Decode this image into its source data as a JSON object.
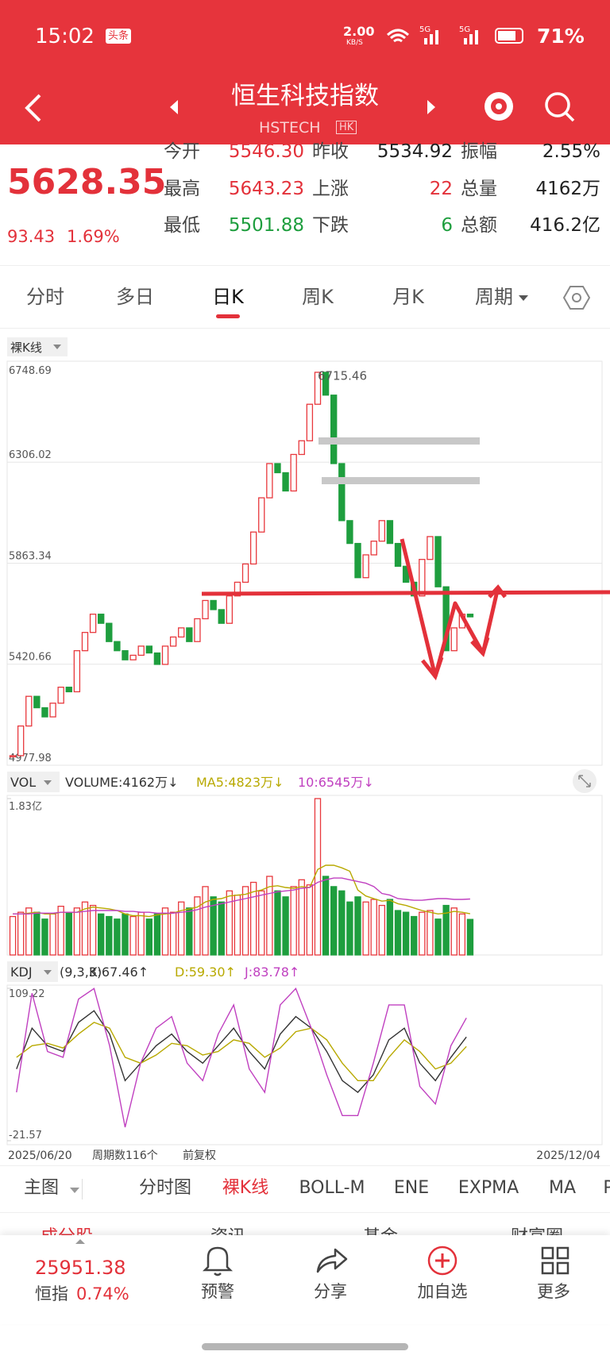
{
  "status": {
    "time": "15:02",
    "app": "头条",
    "speed": "2.00",
    "speed_unit": "KB/S",
    "battery": "71%"
  },
  "header": {
    "title": "恒生科技指数",
    "code": "HSTECH",
    "market": "HK"
  },
  "quote": {
    "price": "5628.35",
    "change": "93.43",
    "change_pct": "1.69%",
    "rows": [
      [
        {
          "label": "今开",
          "value": "5546.30"
        },
        {
          "label": "昨收",
          "value": "5534.92"
        },
        {
          "label": "振幅",
          "value": "2.55%"
        }
      ],
      [
        {
          "label": "最高",
          "value": "5643.23"
        },
        {
          "label": "上涨",
          "value": "22"
        },
        {
          "label": "总量",
          "value": "4162万"
        }
      ],
      [
        {
          "label": "最低",
          "value": "5501.88"
        },
        {
          "label": "下跌",
          "value": "6"
        },
        {
          "label": "总额",
          "value": "416.2亿"
        }
      ]
    ]
  },
  "tabs": [
    "分时",
    "多日",
    "日K",
    "周K",
    "月K",
    "周期"
  ],
  "chart_data": [
    {
      "type": "candlestick",
      "title": "裸K线",
      "up_color": "#e8383d",
      "down_color": "#1e9e3e",
      "max_label": 6715.46,
      "ylim": [
        4977.98,
        6748.69
      ],
      "yticks": [
        6748.69,
        6306.02,
        5863.34,
        5420.66,
        4977.98
      ],
      "grid": true,
      "values": [
        5020,
        5150,
        5280,
        5230,
        5190,
        5250,
        5320,
        5300,
        5480,
        5560,
        5640,
        5600,
        5520,
        5480,
        5440,
        5460,
        5500,
        5470,
        5420,
        5500,
        5540,
        5580,
        5520,
        5620,
        5700,
        5660,
        5600,
        5720,
        5780,
        5860,
        6000,
        6150,
        6300,
        6260,
        6180,
        6340,
        6400,
        6560,
        6700,
        6600,
        6300,
        6050,
        5950,
        5800,
        5900,
        5960,
        6050,
        5950,
        5850,
        5780,
        5720,
        5880,
        5980,
        5760,
        5480,
        5580,
        5640,
        5628.35
      ]
    },
    {
      "type": "bar",
      "title": "VOL",
      "ylim": [
        0,
        1.83
      ],
      "yticks": [
        {
          "value": 1.83,
          "label": "1.83亿"
        }
      ],
      "series": [
        {
          "name": "VOLUME:4162万↓",
          "color": "#333333",
          "values": [
            0.45,
            0.5,
            0.55,
            0.5,
            0.42,
            0.48,
            0.57,
            0.5,
            0.55,
            0.62,
            0.58,
            0.48,
            0.45,
            0.42,
            0.48,
            0.45,
            0.5,
            0.42,
            0.48,
            0.55,
            0.5,
            0.62,
            0.55,
            0.68,
            0.8,
            0.68,
            0.62,
            0.75,
            0.7,
            0.8,
            0.85,
            0.75,
            0.92,
            0.75,
            0.68,
            0.8,
            0.88,
            0.82,
            1.83,
            0.92,
            0.8,
            0.75,
            0.62,
            0.68,
            0.62,
            0.65,
            0.58,
            0.65,
            0.52,
            0.5,
            0.45,
            0.5,
            0.52,
            0.42,
            0.58,
            0.55,
            0.48,
            0.4162
          ]
        },
        {
          "name": "MA5:4823万↓",
          "color": "#b8a900",
          "values": [
            0.48,
            0.48,
            0.49,
            0.5,
            0.48,
            0.48,
            0.5,
            0.5,
            0.5,
            0.54,
            0.56,
            0.55,
            0.54,
            0.52,
            0.48,
            0.46,
            0.46,
            0.45,
            0.47,
            0.48,
            0.49,
            0.52,
            0.54,
            0.56,
            0.62,
            0.65,
            0.66,
            0.69,
            0.7,
            0.71,
            0.74,
            0.76,
            0.8,
            0.81,
            0.79,
            0.78,
            0.8,
            0.79,
            1.0,
            1.05,
            1.05,
            1.02,
            0.98,
            0.76,
            0.69,
            0.66,
            0.63,
            0.64,
            0.6,
            0.58,
            0.55,
            0.52,
            0.5,
            0.48,
            0.49,
            0.51,
            0.5,
            0.4823
          ]
        },
        {
          "name": "10:6545万↓",
          "color": "#c040c0",
          "values": [
            0.48,
            0.48,
            0.48,
            0.49,
            0.49,
            0.49,
            0.5,
            0.5,
            0.5,
            0.51,
            0.52,
            0.52,
            0.52,
            0.52,
            0.51,
            0.51,
            0.5,
            0.5,
            0.49,
            0.49,
            0.49,
            0.5,
            0.51,
            0.53,
            0.56,
            0.58,
            0.6,
            0.62,
            0.64,
            0.66,
            0.68,
            0.7,
            0.72,
            0.74,
            0.75,
            0.76,
            0.78,
            0.79,
            0.85,
            0.88,
            0.9,
            0.9,
            0.88,
            0.86,
            0.84,
            0.8,
            0.72,
            0.7,
            0.66,
            0.65,
            0.64,
            0.64,
            0.65,
            0.66,
            0.66,
            0.65,
            0.65,
            0.6545
          ]
        }
      ]
    },
    {
      "type": "line",
      "title": "KDJ",
      "params": "(9,3,3)",
      "ylim": [
        -21.57,
        109.22
      ],
      "yticks": [
        109.22,
        -21.57
      ],
      "x_labels": [
        "2025/06/20",
        "2025/12/04"
      ],
      "count_label": "周期数116个",
      "adjust_label": "前复权",
      "series": [
        {
          "name": "K:67.46↑",
          "color": "#333333",
          "values": [
            40,
            75,
            60,
            55,
            80,
            90,
            70,
            30,
            45,
            60,
            70,
            55,
            45,
            60,
            75,
            55,
            40,
            70,
            85,
            75,
            55,
            30,
            20,
            35,
            65,
            75,
            45,
            30,
            50,
            67.46
          ]
        },
        {
          "name": "D:59.30↑",
          "color": "#b8a900",
          "values": [
            50,
            60,
            62,
            58,
            70,
            80,
            75,
            50,
            45,
            52,
            62,
            60,
            52,
            55,
            65,
            62,
            50,
            58,
            72,
            75,
            65,
            45,
            30,
            30,
            50,
            65,
            55,
            40,
            45,
            59.3
          ]
        },
        {
          "name": "J:83.78↑",
          "color": "#c040c0",
          "values": [
            20,
            105,
            55,
            50,
            100,
            109,
            60,
            -10,
            45,
            75,
            85,
            45,
            30,
            70,
            95,
            40,
            20,
            95,
            109,
            75,
            35,
            0,
            0,
            45,
            95,
            95,
            25,
            10,
            60,
            83.78
          ]
        }
      ]
    }
  ],
  "indicator_tabs": [
    "主图",
    "分时图",
    "裸K线",
    "BOLL-M",
    "ENE",
    "EXPMA",
    "MA",
    "P"
  ],
  "section_tabs": [
    "成分股",
    "资讯",
    "基金",
    "财富圈"
  ],
  "footer": {
    "index_value": "25951.38",
    "index_name": "恒指",
    "index_change": "0.74%",
    "actions": [
      "预警",
      "分享",
      "加自选",
      "更多"
    ]
  }
}
